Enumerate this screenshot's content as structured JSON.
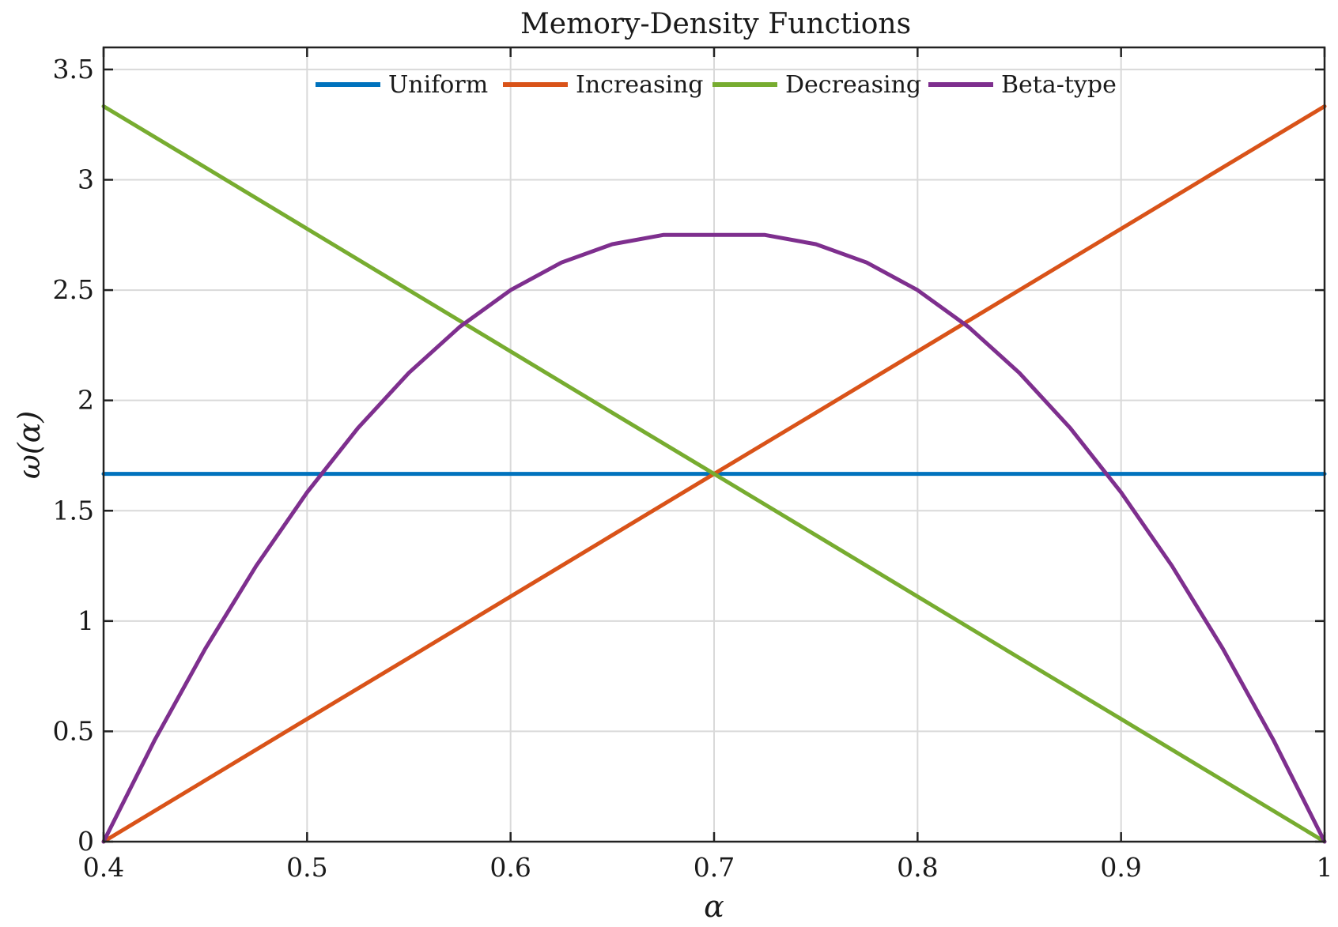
{
  "chart_data": {
    "type": "line",
    "title": "Memory-Density Functions",
    "xlabel": "α",
    "ylabel": "ω(α)",
    "xlim": [
      0.4,
      1.0
    ],
    "ylim": [
      0,
      3.6
    ],
    "xticks": [
      0.4,
      0.5,
      0.6,
      0.7,
      0.8,
      0.9,
      1.0
    ],
    "xtick_labels": [
      "0.4",
      "0.5",
      "0.6",
      "0.7",
      "0.8",
      "0.9",
      "1"
    ],
    "yticks": [
      0,
      0.5,
      1,
      1.5,
      2,
      2.5,
      3,
      3.5
    ],
    "ytick_labels": [
      "0",
      "0.5",
      "1",
      "1.5",
      "2",
      "2.5",
      "3",
      "3.5"
    ],
    "grid": true,
    "legend_position": "top-center",
    "series": [
      {
        "name": "Uniform",
        "color": "#0072BD",
        "x": [
          0.4,
          0.45,
          0.5,
          0.55,
          0.6,
          0.65,
          0.7,
          0.75,
          0.8,
          0.85,
          0.9,
          0.95,
          1.0
        ],
        "y": [
          1.667,
          1.667,
          1.667,
          1.667,
          1.667,
          1.667,
          1.667,
          1.667,
          1.667,
          1.667,
          1.667,
          1.667,
          1.667
        ]
      },
      {
        "name": "Increasing",
        "color": "#D95319",
        "x": [
          0.4,
          0.45,
          0.5,
          0.55,
          0.6,
          0.65,
          0.7,
          0.75,
          0.8,
          0.85,
          0.9,
          0.95,
          1.0
        ],
        "y": [
          0,
          0.278,
          0.556,
          0.833,
          1.111,
          1.389,
          1.667,
          1.944,
          2.222,
          2.5,
          2.778,
          3.056,
          3.333
        ]
      },
      {
        "name": "Decreasing",
        "color": "#77AC30",
        "x": [
          0.4,
          0.45,
          0.5,
          0.55,
          0.6,
          0.65,
          0.7,
          0.75,
          0.8,
          0.85,
          0.9,
          0.95,
          1.0
        ],
        "y": [
          3.333,
          3.056,
          2.778,
          2.5,
          2.222,
          1.944,
          1.667,
          1.389,
          1.111,
          0.833,
          0.556,
          0.278,
          0
        ]
      },
      {
        "name": "Beta-type",
        "color": "#7E2F8E",
        "x": [
          0.4,
          0.425,
          0.45,
          0.475,
          0.5,
          0.525,
          0.55,
          0.575,
          0.6,
          0.625,
          0.65,
          0.675,
          0.7,
          0.725,
          0.75,
          0.775,
          0.8,
          0.825,
          0.85,
          0.875,
          0.9,
          0.925,
          0.95,
          0.975,
          1.0
        ],
        "y": [
          0,
          0.458,
          0.875,
          1.25,
          1.583,
          1.875,
          2.125,
          2.333,
          2.5,
          2.625,
          2.708,
          2.75,
          2.75,
          2.75,
          2.708,
          2.625,
          2.5,
          2.333,
          2.125,
          1.875,
          1.583,
          1.25,
          0.875,
          0.458,
          0
        ]
      }
    ]
  }
}
